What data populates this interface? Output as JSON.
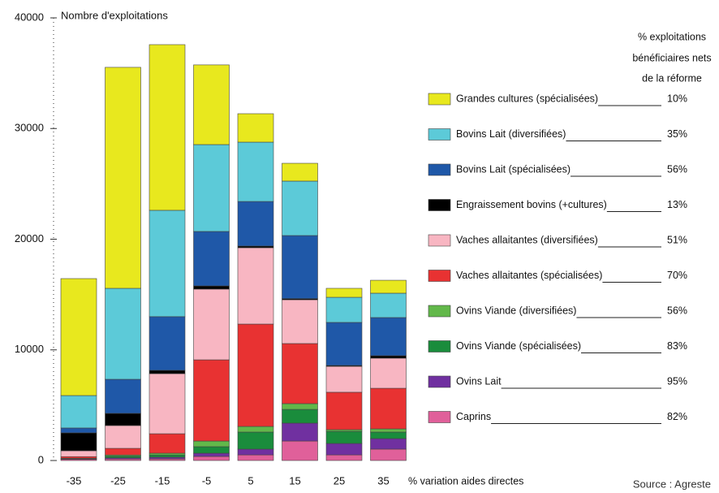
{
  "chart_data": {
    "type": "bar",
    "stacked": true,
    "y_axis_label": "Nombre d'exploitations",
    "x_axis_label": "% variation aides directes",
    "legend_title": [
      "% exploitations",
      "bénéficiaires nets",
      "de la réforme"
    ],
    "source": "Source : Agreste",
    "categories": [
      "-35",
      "-25",
      "-15",
      "-5",
      "5",
      "15",
      "25",
      "35"
    ],
    "ylim": [
      0,
      40000
    ],
    "yticks": [
      0,
      10000,
      20000,
      30000,
      40000
    ],
    "series": [
      {
        "name": "Caprins",
        "share": "82%",
        "color": "#e0609a",
        "values": [
          100,
          150,
          150,
          370,
          510,
          1760,
          510,
          1030
        ]
      },
      {
        "name": "Ovins Lait",
        "share": "95%",
        "color": "#7030a0",
        "values": [
          50,
          100,
          150,
          290,
          520,
          1620,
          1030,
          950
        ]
      },
      {
        "name": "Ovins Viande (spécialisées)",
        "share": "83%",
        "color": "#1a8c3c",
        "values": [
          50,
          150,
          200,
          590,
          1540,
          1240,
          1100,
          590
        ]
      },
      {
        "name": "Ovins Viande (diversifiées)",
        "share": "56%",
        "color": "#62b84a",
        "values": [
          0,
          100,
          160,
          510,
          510,
          520,
          150,
          290
        ]
      },
      {
        "name": "Vaches allaitantes (spécialisées)",
        "share": "70%",
        "color": "#e83232",
        "values": [
          150,
          600,
          1760,
          7340,
          9250,
          5430,
          3380,
          3670
        ]
      },
      {
        "name": "Vaches allaitantes (diversifiées)",
        "share": "51%",
        "color": "#f8b6c2",
        "values": [
          530,
          2060,
          5430,
          6390,
          6900,
          3960,
          2340,
          2720
        ]
      },
      {
        "name": "Engraissement bovins (+cultures)",
        "share": "13%",
        "color": "#000000",
        "values": [
          1620,
          1100,
          300,
          290,
          150,
          100,
          80,
          220
        ]
      },
      {
        "name": "Bovins Lait (spécialisées)",
        "share": "56%",
        "color": "#1f58a8",
        "values": [
          440,
          3080,
          4850,
          4920,
          4030,
          5700,
          3890,
          3450
        ]
      },
      {
        "name": "Bovins Lait (diversifiées)",
        "share": "35%",
        "color": "#5ccad8",
        "values": [
          2930,
          8220,
          9610,
          7850,
          5360,
          4920,
          2270,
          2200
        ]
      },
      {
        "name": "Grandes cultures (spécialisées)",
        "share": "10%",
        "color": "#e8e81e",
        "values": [
          10570,
          19970,
          14970,
          7200,
          2570,
          1610,
          810,
          1170
        ]
      }
    ]
  }
}
